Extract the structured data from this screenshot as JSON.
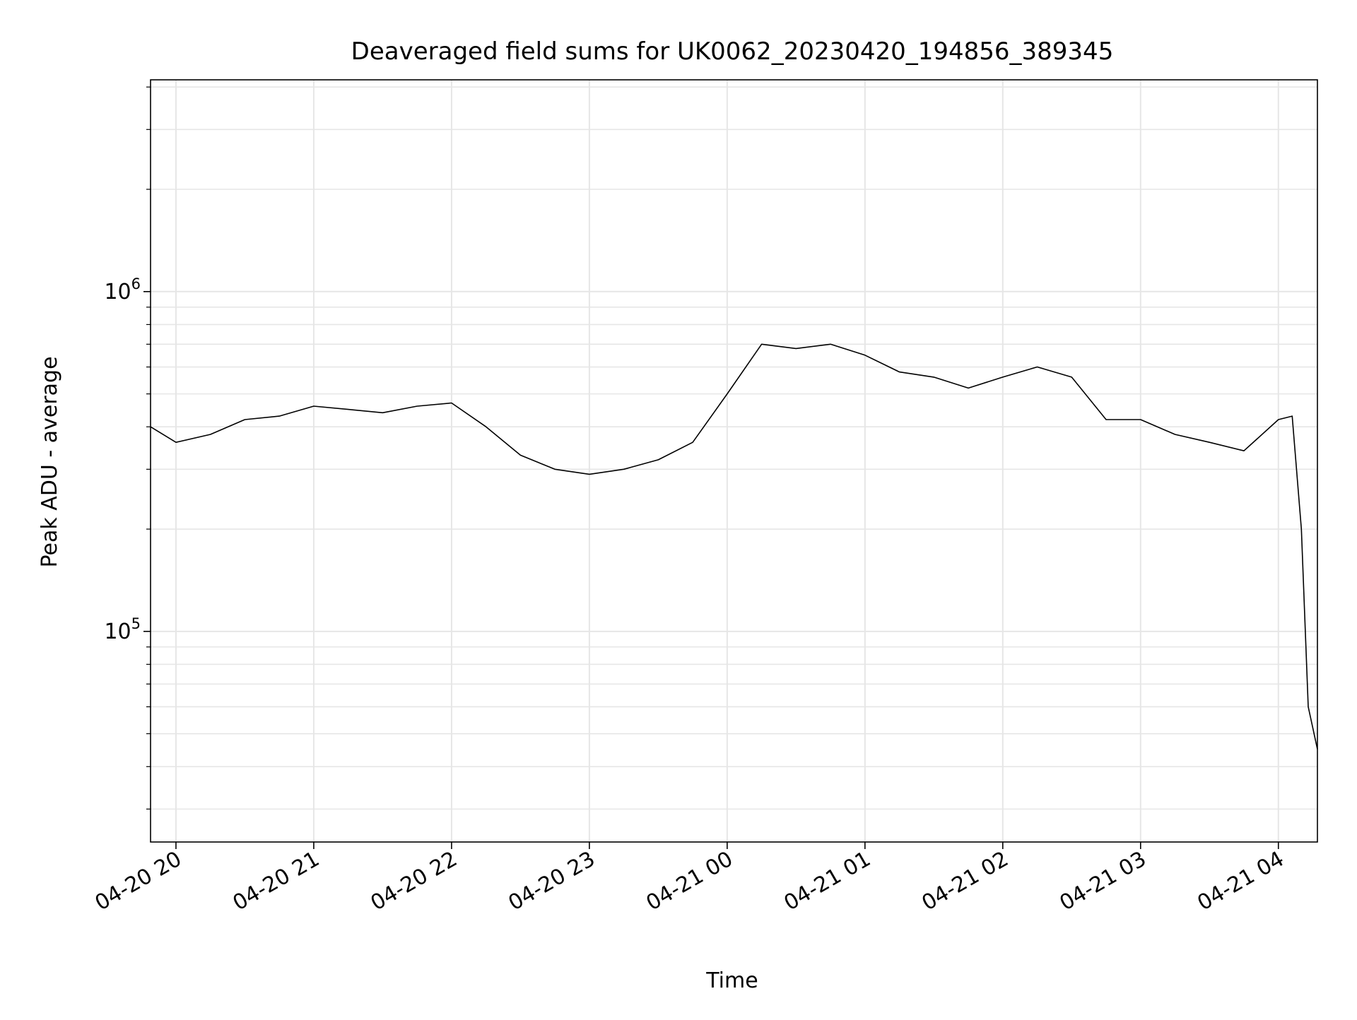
{
  "chart_data": {
    "type": "line",
    "title": "Deaveraged field sums for UK0062_20230420_194856_389345",
    "xlabel": "Time",
    "ylabel": "Peak ADU - average",
    "y_scale": "log",
    "ylim": [
      24000,
      4200000
    ],
    "xlim": [
      "2023-04-20T19:48:56",
      "2023-04-21T04:17:00"
    ],
    "x_ticks": [
      {
        "value": "2023-04-20T20:00:00",
        "label": "04-20 20"
      },
      {
        "value": "2023-04-20T21:00:00",
        "label": "04-20 21"
      },
      {
        "value": "2023-04-20T22:00:00",
        "label": "04-20 22"
      },
      {
        "value": "2023-04-20T23:00:00",
        "label": "04-20 23"
      },
      {
        "value": "2023-04-21T00:00:00",
        "label": "04-21 00"
      },
      {
        "value": "2023-04-21T01:00:00",
        "label": "04-21 01"
      },
      {
        "value": "2023-04-21T02:00:00",
        "label": "04-21 02"
      },
      {
        "value": "2023-04-21T03:00:00",
        "label": "04-21 03"
      },
      {
        "value": "2023-04-21T04:00:00",
        "label": "04-21 04"
      }
    ],
    "y_ticks": [
      {
        "value": 100000,
        "base": "10",
        "exp": "5"
      },
      {
        "value": 1000000,
        "base": "10",
        "exp": "6"
      }
    ],
    "grid": true,
    "line_color": "#000000",
    "grid_color": "#e6e6e6",
    "series": [
      {
        "x": [
          "2023-04-20T19:48:56",
          "2023-04-20T20:00:00",
          "2023-04-20T20:15:00",
          "2023-04-20T20:30:00",
          "2023-04-20T20:45:00",
          "2023-04-20T21:00:00",
          "2023-04-20T21:15:00",
          "2023-04-20T21:30:00",
          "2023-04-20T21:45:00",
          "2023-04-20T22:00:00",
          "2023-04-20T22:15:00",
          "2023-04-20T22:30:00",
          "2023-04-20T22:45:00",
          "2023-04-20T23:00:00",
          "2023-04-20T23:15:00",
          "2023-04-20T23:30:00",
          "2023-04-20T23:45:00",
          "2023-04-21T00:00:00",
          "2023-04-21T00:15:00",
          "2023-04-21T00:30:00",
          "2023-04-21T00:45:00",
          "2023-04-21T01:00:00",
          "2023-04-21T01:15:00",
          "2023-04-21T01:30:00",
          "2023-04-21T01:45:00",
          "2023-04-21T02:00:00",
          "2023-04-21T02:15:00",
          "2023-04-21T02:30:00",
          "2023-04-21T02:45:00",
          "2023-04-21T03:00:00",
          "2023-04-21T03:15:00",
          "2023-04-21T03:30:00",
          "2023-04-21T03:45:00",
          "2023-04-21T04:00:00",
          "2023-04-21T04:06:00",
          "2023-04-21T04:10:00",
          "2023-04-21T04:13:00",
          "2023-04-21T04:17:00"
        ],
        "y": [
          400000,
          360000,
          380000,
          420000,
          430000,
          460000,
          450000,
          440000,
          460000,
          470000,
          400000,
          330000,
          300000,
          290000,
          300000,
          320000,
          360000,
          500000,
          700000,
          680000,
          700000,
          650000,
          580000,
          560000,
          520000,
          560000,
          600000,
          560000,
          420000,
          420000,
          380000,
          360000,
          340000,
          420000,
          430000,
          200000,
          60000,
          45000
        ]
      }
    ]
  }
}
